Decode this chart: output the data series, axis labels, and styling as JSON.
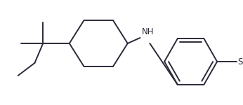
{
  "bg_color": "#ffffff",
  "line_color": "#2a2a3a",
  "line_width": 1.4,
  "nh_label": "NH",
  "s_label": "S",
  "nh_fontsize": 8.5,
  "s_fontsize": 8.5,
  "figsize": [
    3.46,
    1.5
  ],
  "dpi": 100
}
